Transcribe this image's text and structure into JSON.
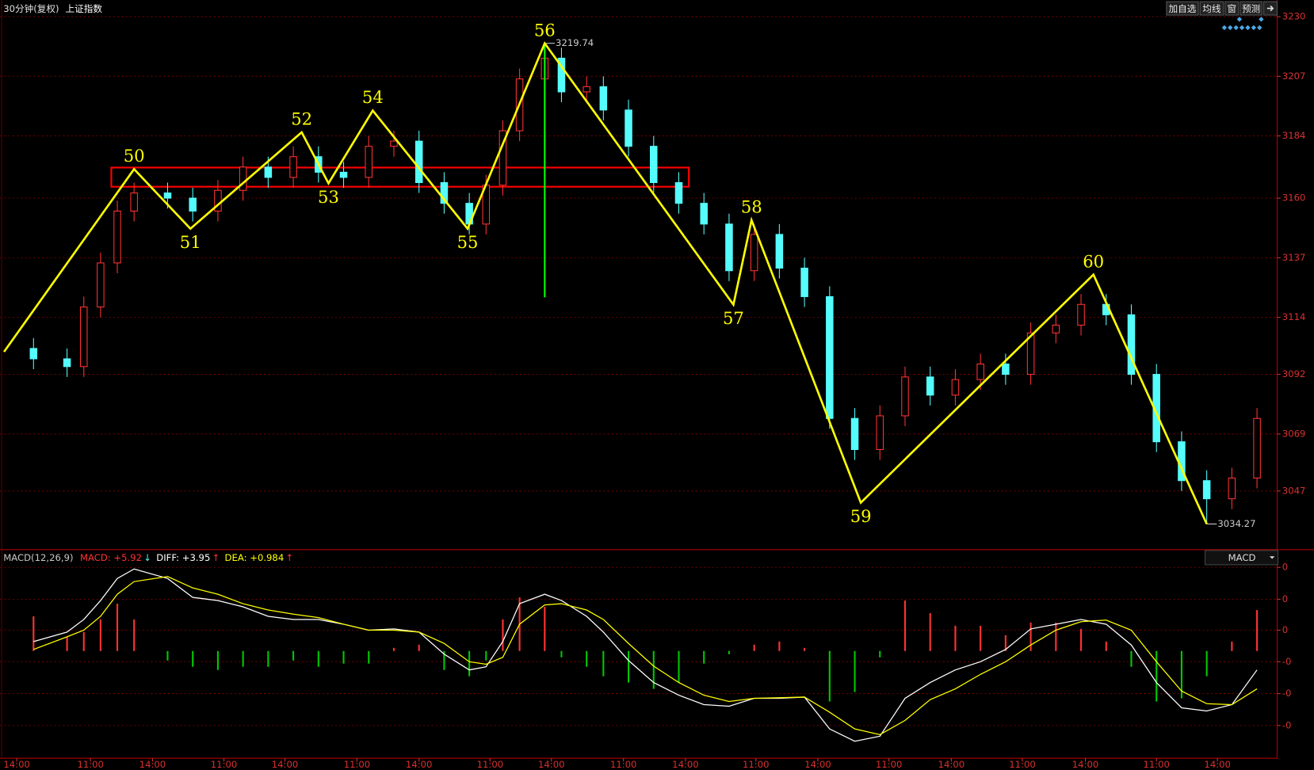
{
  "toolbar": [
    "加自选",
    "均线",
    "窗",
    "预测"
  ],
  "chart_data": [
    {
      "type": "candlestick",
      "subtitle": "30分钟(复权)",
      "title": "上证指数",
      "x": [
        5,
        10,
        12.5,
        15,
        17.5,
        20,
        25,
        28.75,
        32.5,
        36.25,
        40,
        43.75,
        47.5,
        51.25,
        55,
        58.75,
        62.5,
        66.25,
        70,
        72.5,
        75,
        77.5,
        81.25,
        83.75,
        87.5,
        90,
        93.75,
        97.5,
        101.25,
        105,
        108.75,
        112.5,
        116.25,
        120,
        123.75,
        127.5,
        131.25,
        135,
        138.75,
        142.5,
        146.25,
        150,
        153.75,
        157.5,
        161.25,
        165,
        168.75,
        172.5,
        176.25,
        180,
        183.75,
        187.5
      ],
      "open": [
        3102,
        3098,
        3095,
        3118,
        3135,
        3155,
        3162,
        3160,
        3155,
        3163,
        3172,
        3168,
        3176,
        3170,
        3168,
        3180,
        3182,
        3166,
        3158,
        3150,
        3165,
        3186,
        3206,
        3214,
        3201,
        3203,
        3194,
        3180,
        3166,
        3158,
        3150,
        3132,
        3146,
        3133,
        3122,
        3075,
        3063,
        3076,
        3091,
        3084,
        3090,
        3096,
        3092,
        3108,
        3111,
        3119,
        3115,
        3092,
        3066,
        3051,
        3044,
        3052
      ],
      "high": [
        3106,
        3102,
        3122,
        3139,
        3159,
        3166,
        3166,
        3164,
        3167,
        3176,
        3176,
        3180,
        3180,
        3174,
        3184,
        3186,
        3186,
        3170,
        3162,
        3169,
        3190,
        3210,
        3219.74,
        3218,
        3207,
        3207,
        3198,
        3184,
        3170,
        3162,
        3154,
        3150,
        3150,
        3137,
        3126,
        3079,
        3080,
        3095,
        3095,
        3094,
        3100,
        3100,
        3112,
        3115,
        3123,
        3123,
        3119,
        3096,
        3070,
        3055,
        3056,
        3079
      ],
      "low": [
        3094,
        3091,
        3091,
        3114,
        3131,
        3151,
        3156,
        3151,
        3151,
        3159,
        3164,
        3164,
        3166,
        3164,
        3164,
        3176,
        3162,
        3154,
        3146,
        3146,
        3161,
        3182,
        3202,
        3197,
        3197,
        3190,
        3176,
        3162,
        3154,
        3146,
        3128,
        3128,
        3129,
        3118,
        3071,
        3059,
        3059,
        3072,
        3080,
        3080,
        3086,
        3088,
        3088,
        3104,
        3107,
        3111,
        3088,
        3062,
        3047,
        3034.27,
        3040,
        3048
      ],
      "close": [
        3098,
        3095,
        3118,
        3135,
        3155,
        3162,
        3160,
        3155,
        3163,
        3172,
        3168,
        3176,
        3170,
        3168,
        3180,
        3182,
        3166,
        3158,
        3150,
        3165,
        3186,
        3206,
        3214,
        3201,
        3203,
        3194,
        3180,
        3166,
        3158,
        3150,
        3132,
        3146,
        3133,
        3122,
        3075,
        3063,
        3076,
        3091,
        3084,
        3090,
        3096,
        3092,
        3108,
        3111,
        3119,
        3115,
        3092,
        3066,
        3051,
        3044,
        3052,
        3075
      ],
      "up_color": "#ff3232",
      "down_color": "#54fcfc",
      "xlim": [
        0,
        190
      ],
      "xticks": [
        {
          "value": 2.5,
          "label": "14:00"
        },
        {
          "value": 13.5,
          "label": "11:00"
        },
        {
          "value": 22.75,
          "label": "14:00"
        },
        {
          "value": 33.4,
          "label": "11:00"
        },
        {
          "value": 42.5,
          "label": "14:00"
        },
        {
          "value": 53.25,
          "label": "11:00"
        },
        {
          "value": 62.5,
          "label": "14:00"
        },
        {
          "value": 73.1,
          "label": "11:00"
        },
        {
          "value": 82.25,
          "label": "14:00"
        },
        {
          "value": 93,
          "label": "11:00"
        },
        {
          "value": 102.25,
          "label": "14:00"
        },
        {
          "value": 112.75,
          "label": "11:00"
        },
        {
          "value": 122,
          "label": "14:00"
        },
        {
          "value": 132.6,
          "label": "11:00"
        },
        {
          "value": 141.9,
          "label": "14:00"
        },
        {
          "value": 152.5,
          "label": "11:00"
        },
        {
          "value": 161.9,
          "label": "14:00"
        },
        {
          "value": 172.5,
          "label": "11:00"
        },
        {
          "value": 181.6,
          "label": "14:00"
        }
      ],
      "ylim": [
        3024.7,
        3235.8
      ],
      "yticks": [
        3230,
        3207,
        3184,
        3160,
        3137,
        3114,
        3092,
        3069,
        3047
      ],
      "grid": true,
      "zigzag": {
        "color": "#ffff00",
        "x": [
          0.6,
          20,
          28.4,
          45,
          49,
          55.6,
          69.75,
          81.25,
          109.4,
          112.1,
          128.4,
          163.1,
          180
        ],
        "values": [
          3100.7,
          3171.2,
          3148.2,
          3185.4,
          3165.7,
          3193.8,
          3148.2,
          3219.74,
          3118.9,
          3151.5,
          3042.5,
          3130.5,
          3034.27
        ],
        "labels": [
          null,
          "50",
          "51",
          "52",
          "53",
          "54",
          "55",
          "56",
          "57",
          "58",
          "59",
          "60",
          null
        ]
      },
      "extremes": [
        {
          "x": 81.25,
          "value": 3219.74
        },
        {
          "x": 180,
          "value": 3034.27
        }
      ],
      "box": {
        "color": "#ff0000",
        "x": [
          16.6,
          102.75
        ],
        "y": [
          3164.4,
          3171.8
        ]
      },
      "marker_line": {
        "color": "#00ff00",
        "x": 81.25,
        "y": [
          3121.7,
          3219.74
        ]
      }
    },
    {
      "type": "macd",
      "legend": [
        {
          "text": "MACD(12,26,9)",
          "color": "#c8c8c8"
        },
        {
          "text": "MACD: +5.92",
          "color": "#ff3232",
          "arrow": "↓",
          "arrow_color": "#54fcfc"
        },
        {
          "text": "DIFF: +3.95",
          "color": "#ffffff",
          "arrow": "↑",
          "arrow_color": "#ff3232"
        },
        {
          "text": "DEA: +0.984",
          "color": "#ffff00",
          "arrow": "↑",
          "arrow_color": "#ff3232"
        }
      ],
      "selector": "MACD",
      "x": [
        5,
        10,
        12.5,
        15,
        17.5,
        20,
        25,
        28.75,
        32.5,
        36.25,
        40,
        43.75,
        47.5,
        51.25,
        55,
        58.75,
        62.5,
        66.25,
        70,
        72.5,
        75,
        77.5,
        81.25,
        83.75,
        87.5,
        90,
        93.75,
        97.5,
        101.25,
        105,
        108.75,
        112.5,
        116.25,
        120,
        123.75,
        127.5,
        131.25,
        135,
        138.75,
        142.5,
        146.25,
        150,
        153.75,
        157.5,
        161.25,
        165,
        168.75,
        172.5,
        176.25,
        180,
        183.75,
        187.5
      ],
      "histogram": {
        "up_color": "#ff3232",
        "down_color": "#00c800",
        "values": [
          11,
          4.5,
          6,
          10,
          15,
          10,
          -3,
          -5,
          -6,
          -5,
          -5,
          -3,
          -5,
          -4,
          -4,
          1,
          2,
          -6,
          -8,
          -3,
          10,
          17,
          14,
          -2,
          -5,
          -8,
          -10,
          -12,
          -10,
          -4,
          -1,
          2,
          3,
          1,
          -16,
          -13,
          -2,
          16,
          12,
          8,
          8,
          5,
          9,
          9,
          7,
          3,
          -5,
          -16,
          -15,
          -8,
          3,
          13
        ]
      },
      "series": [
        {
          "color": "#ffffff",
          "values": [
            3,
            6,
            10,
            16,
            23,
            26,
            23,
            17,
            16,
            14,
            11,
            10,
            10,
            8.5,
            6.6,
            7,
            6,
            -1,
            -6,
            -5,
            3,
            15,
            18,
            16,
            11,
            6,
            -3,
            -10,
            -14,
            -17,
            -17.5,
            -15,
            -15,
            -14.6,
            -24.7,
            -28.6,
            -27,
            -15,
            -10,
            -6,
            -3.4,
            0.5,
            7,
            8.5,
            10,
            8.5,
            1.9,
            -10,
            -18,
            -19,
            -17,
            -6
          ]
        },
        {
          "color": "#ffff00",
          "values": [
            0.5,
            4.5,
            6.6,
            11,
            18,
            22,
            23.6,
            20,
            18,
            15,
            13,
            11.7,
            10.6,
            8.5,
            6.6,
            6.6,
            6,
            2.4,
            -3.4,
            -4.2,
            -2,
            8.5,
            14.6,
            15,
            13,
            10,
            2.4,
            -4.8,
            -10,
            -14,
            -16,
            -15,
            -14.8,
            -14.6,
            -19.4,
            -24.7,
            -26.5,
            -22,
            -15.4,
            -12,
            -7.4,
            -3.4,
            1.9,
            6.6,
            9.3,
            9.8,
            6.6,
            -3.4,
            -12.7,
            -16.7,
            -17,
            -12
          ]
        }
      ],
      "ylim": [
        -34,
        31.6
      ],
      "yticks": [
        {
          "value": 26.5,
          "label": "0"
        },
        {
          "value": 16.4,
          "label": "0"
        },
        {
          "value": 6.6,
          "label": "0"
        },
        {
          "value": -3.4,
          "label": "-0"
        },
        {
          "value": -13.5,
          "label": "-0"
        },
        {
          "value": -23.6,
          "label": "-0"
        }
      ]
    }
  ]
}
